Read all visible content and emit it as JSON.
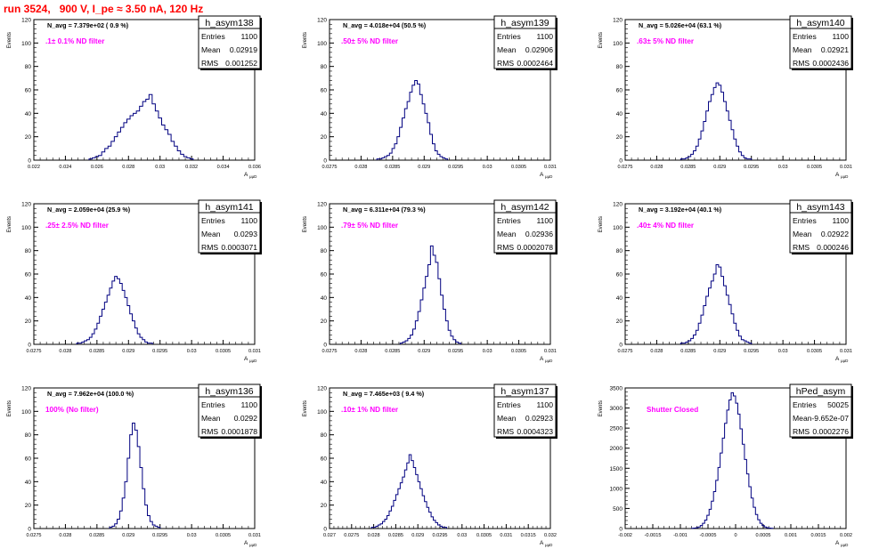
{
  "page": {
    "title": "run 3524,   900 V, I_pe ≈ 3.50 nA, 120 Hz"
  },
  "stats_labels": {
    "entries": "Entries",
    "mean": "Mean",
    "rms": "RMS"
  },
  "axis_labels": {
    "y": "Events",
    "x": "A",
    "x_sub": "μμD"
  },
  "colors": {
    "histogram": "#000080",
    "nd_label": "#ff00ff",
    "title_red": "#ff0000",
    "axis": "#000000"
  },
  "chart_data": [
    {
      "type": "histogram",
      "name": "h_asym138",
      "navg": "N_avg = 7.379e+02 ( 0.9 %)",
      "nd": ".1± 0.1% ND filter",
      "entries": "1100",
      "mean": "0.02919",
      "rms": "0.001252",
      "xlim": [
        0.022,
        0.036
      ],
      "ylim": [
        0,
        120
      ],
      "x_ticks": [
        0.022,
        0.024,
        0.026,
        0.028,
        0.03,
        0.032,
        0.034,
        0.036
      ],
      "x_tick_labels": [
        "0.022",
        "0.024",
        "0.026",
        "0.028",
        "0.03",
        "0.032",
        "0.034",
        "0.036"
      ],
      "y_ticks": [
        0,
        20,
        40,
        60,
        80,
        100,
        120
      ],
      "y_tick_labels": [
        "0",
        "20",
        "40",
        "60",
        "80",
        "100",
        "120"
      ],
      "bins": {
        "start": 0.0255,
        "width": 0.0002,
        "counts": [
          1,
          2,
          3,
          4,
          7,
          10,
          12,
          16,
          20,
          24,
          28,
          32,
          35,
          38,
          40,
          42,
          46,
          50,
          52,
          56,
          48,
          42,
          36,
          30,
          26,
          22,
          16,
          12,
          8,
          5,
          3,
          2,
          1
        ]
      }
    },
    {
      "type": "histogram",
      "name": "h_asym139",
      "navg": "N_avg = 4.018e+04 (50.5 %)",
      "nd": ".50± 5% ND filter",
      "entries": "1100",
      "mean": "0.02906",
      "rms": "0.0002464",
      "xlim": [
        0.0275,
        0.031
      ],
      "ylim": [
        0,
        120
      ],
      "x_ticks": [
        0.0275,
        0.028,
        0.0285,
        0.029,
        0.0295,
        0.03,
        0.0305,
        0.031
      ],
      "x_tick_labels": [
        "0.0275",
        "0.028",
        "0.0285",
        "0.029",
        "0.0295",
        "0.03",
        "0.0305",
        "0.031"
      ],
      "y_ticks": [
        0,
        20,
        40,
        60,
        80,
        100,
        120
      ],
      "y_tick_labels": [
        "0",
        "20",
        "40",
        "60",
        "80",
        "100",
        "120"
      ],
      "bins": {
        "start": 0.02825,
        "width": 4e-05,
        "counts": [
          1,
          1,
          2,
          3,
          4,
          6,
          10,
          14,
          20,
          28,
          36,
          44,
          50,
          58,
          64,
          68,
          65,
          56,
          48,
          40,
          32,
          22,
          14,
          8,
          5,
          3,
          2,
          1
        ]
      }
    },
    {
      "type": "histogram",
      "name": "h_asym140",
      "navg": "N_avg = 5.026e+04 (63.1 %)",
      "nd": ".63± 5% ND filter",
      "entries": "1100",
      "mean": "0.02921",
      "rms": "0.0002436",
      "xlim": [
        0.0275,
        0.031
      ],
      "ylim": [
        0,
        120
      ],
      "x_ticks": [
        0.0275,
        0.028,
        0.0285,
        0.029,
        0.0295,
        0.03,
        0.0305,
        0.031
      ],
      "x_tick_labels": [
        "0.0275",
        "0.028",
        "0.0285",
        "0.029",
        "0.0295",
        "0.03",
        "0.0305",
        "0.031"
      ],
      "y_ticks": [
        0,
        20,
        40,
        60,
        80,
        100,
        120
      ],
      "y_tick_labels": [
        "0",
        "20",
        "40",
        "60",
        "80",
        "100",
        "120"
      ],
      "bins": {
        "start": 0.02838,
        "width": 4e-05,
        "counts": [
          1,
          1,
          2,
          3,
          5,
          8,
          12,
          18,
          25,
          33,
          42,
          50,
          56,
          62,
          66,
          64,
          58,
          50,
          42,
          34,
          26,
          18,
          12,
          7,
          4,
          2,
          1,
          1
        ]
      }
    },
    {
      "type": "histogram",
      "name": "h_asym141",
      "navg": "N_avg = 2.059e+04 (25.9 %)",
      "nd": ".25± 2.5% ND filter",
      "entries": "1100",
      "mean": "0.0293",
      "rms": "0.0003071",
      "xlim": [
        0.0275,
        0.031
      ],
      "ylim": [
        0,
        120
      ],
      "x_ticks": [
        0.0275,
        0.028,
        0.0285,
        0.029,
        0.0295,
        0.03,
        0.0305,
        0.031
      ],
      "x_tick_labels": [
        "0.0275",
        "0.028",
        "0.0285",
        "0.029",
        "0.0295",
        "0.03",
        "0.0305",
        "0.031"
      ],
      "y_ticks": [
        0,
        20,
        40,
        60,
        80,
        100,
        120
      ],
      "y_tick_labels": [
        "0",
        "20",
        "40",
        "60",
        "80",
        "100",
        "120"
      ],
      "bins": {
        "start": 0.02818,
        "width": 4e-05,
        "counts": [
          1,
          1,
          2,
          3,
          4,
          6,
          9,
          13,
          18,
          24,
          30,
          36,
          42,
          48,
          54,
          58,
          56,
          52,
          46,
          40,
          33,
          26,
          20,
          14,
          9,
          6,
          4,
          2,
          1,
          1
        ]
      }
    },
    {
      "type": "histogram",
      "name": "h_asym142",
      "navg": "N_avg = 6.311e+04 (79.3 %)",
      "nd": ".79± 5% ND filter",
      "entries": "1100",
      "mean": "0.02936",
      "rms": "0.0002078",
      "xlim": [
        0.0275,
        0.031
      ],
      "ylim": [
        0,
        120
      ],
      "x_ticks": [
        0.0275,
        0.028,
        0.0285,
        0.029,
        0.0295,
        0.03,
        0.0305,
        0.031
      ],
      "x_tick_labels": [
        "0.0275",
        "0.028",
        "0.0285",
        "0.029",
        "0.0295",
        "0.03",
        "0.0305",
        "0.031"
      ],
      "y_ticks": [
        0,
        20,
        40,
        60,
        80,
        100,
        120
      ],
      "y_tick_labels": [
        "0",
        "20",
        "40",
        "60",
        "80",
        "100",
        "120"
      ],
      "bins": {
        "start": 0.02862,
        "width": 4e-05,
        "counts": [
          1,
          2,
          3,
          5,
          8,
          13,
          20,
          28,
          38,
          48,
          58,
          68,
          84,
          76,
          70,
          56,
          42,
          30,
          20,
          12,
          7,
          4,
          2,
          1
        ]
      }
    },
    {
      "type": "histogram",
      "name": "h_asym143",
      "navg": "N_avg = 3.192e+04 (40.1 %)",
      "nd": ".40± 4% ND filter",
      "entries": "1100",
      "mean": "0.02922",
      "rms": "0.000246",
      "xlim": [
        0.0275,
        0.031
      ],
      "ylim": [
        0,
        120
      ],
      "x_ticks": [
        0.0275,
        0.028,
        0.0285,
        0.029,
        0.0295,
        0.03,
        0.0305,
        0.031
      ],
      "x_tick_labels": [
        "0.0275",
        "0.028",
        "0.0285",
        "0.029",
        "0.0295",
        "0.03",
        "0.0305",
        "0.031"
      ],
      "y_ticks": [
        0,
        20,
        40,
        60,
        80,
        100,
        120
      ],
      "y_tick_labels": [
        "0",
        "20",
        "40",
        "60",
        "80",
        "100",
        "120"
      ],
      "bins": {
        "start": 0.02838,
        "width": 4e-05,
        "counts": [
          1,
          1,
          2,
          3,
          5,
          8,
          12,
          18,
          25,
          33,
          41,
          48,
          54,
          60,
          68,
          66,
          58,
          50,
          42,
          34,
          26,
          18,
          12,
          7,
          4,
          3,
          2,
          1
        ]
      }
    },
    {
      "type": "histogram",
      "name": "h_asym136",
      "navg": "N_avg = 7.962e+04 (100.0 %)",
      "nd": "100% (No filter)",
      "entries": "1100",
      "mean": "0.0292",
      "rms": "0.0001878",
      "xlim": [
        0.0275,
        0.031
      ],
      "ylim": [
        0,
        120
      ],
      "x_ticks": [
        0.0275,
        0.028,
        0.0285,
        0.029,
        0.0295,
        0.03,
        0.0305,
        0.031
      ],
      "x_tick_labels": [
        "0.0275",
        "0.028",
        "0.0285",
        "0.029",
        "0.0295",
        "0.03",
        "0.0305",
        "0.031"
      ],
      "y_ticks": [
        0,
        20,
        40,
        60,
        80,
        100,
        120
      ],
      "y_tick_labels": [
        "0",
        "20",
        "40",
        "60",
        "80",
        "100",
        "120"
      ],
      "bins": {
        "start": 0.0287,
        "width": 4e-05,
        "counts": [
          1,
          2,
          4,
          8,
          15,
          26,
          40,
          60,
          80,
          90,
          84,
          70,
          52,
          34,
          20,
          11,
          6,
          3,
          2,
          1
        ]
      }
    },
    {
      "type": "histogram",
      "name": "h_asym137",
      "navg": "N_avg = 7.465e+03 ( 9.4 %)",
      "nd": ".10± 1% ND filter",
      "entries": "1100",
      "mean": "0.02923",
      "rms": "0.0004323",
      "xlim": [
        0.027,
        0.032
      ],
      "ylim": [
        0,
        120
      ],
      "x_ticks": [
        0.027,
        0.0275,
        0.028,
        0.0285,
        0.029,
        0.0295,
        0.03,
        0.0305,
        0.031,
        0.0315,
        0.032
      ],
      "x_tick_labels": [
        "0.027",
        "0.0275",
        "0.028",
        "0.0285",
        "0.029",
        "0.0295",
        "0.03",
        "0.0305",
        "0.031",
        "0.0315",
        "0.032"
      ],
      "y_ticks": [
        0,
        20,
        40,
        60,
        80,
        100,
        120
      ],
      "y_tick_labels": [
        "0",
        "20",
        "40",
        "60",
        "80",
        "100",
        "120"
      ],
      "bins": {
        "start": 0.02795,
        "width": 5e-05,
        "counts": [
          1,
          1,
          2,
          3,
          4,
          6,
          8,
          11,
          15,
          19,
          24,
          29,
          34,
          39,
          44,
          50,
          56,
          63,
          58,
          52,
          46,
          40,
          34,
          28,
          23,
          18,
          14,
          10,
          7,
          5,
          3,
          2,
          1,
          1
        ]
      }
    },
    {
      "type": "histogram",
      "name": "hPed_asym",
      "navg": "",
      "nd": "Shutter Closed",
      "entries": "50025",
      "mean": "-9.652e-07",
      "rms": "0.0002276",
      "xlim": [
        -0.002,
        0.002
      ],
      "ylim": [
        0,
        3500
      ],
      "x_ticks": [
        -0.002,
        -0.0015,
        -0.001,
        -0.0005,
        0,
        0.0005,
        0.001,
        0.0015,
        0.002
      ],
      "x_tick_labels": [
        "-0.002",
        "-0.0015",
        "-0.001",
        "-0.0005",
        "0",
        "0.0005",
        "0.001",
        "0.0015",
        "0.002"
      ],
      "y_ticks": [
        0,
        500,
        1000,
        1500,
        2000,
        2500,
        3000,
        3500
      ],
      "y_tick_labels": [
        "0",
        "500",
        "1000",
        "1500",
        "2000",
        "2500",
        "3000",
        "3500"
      ],
      "bins": {
        "start": -0.0008,
        "width": 4e-05,
        "counts": [
          5,
          10,
          20,
          40,
          75,
          130,
          210,
          330,
          480,
          680,
          920,
          1200,
          1520,
          1880,
          2250,
          2620,
          2950,
          3200,
          3380,
          3300,
          3120,
          2850,
          2480,
          2100,
          1720,
          1360,
          1040,
          760,
          530,
          350,
          220,
          130,
          75,
          40,
          20,
          10,
          5
        ]
      }
    }
  ]
}
